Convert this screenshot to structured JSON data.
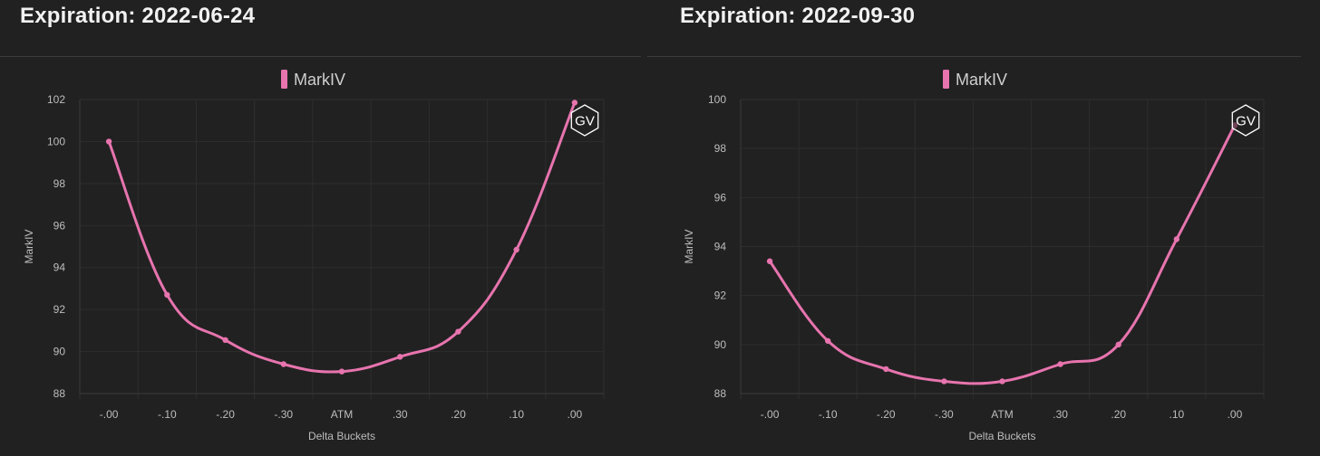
{
  "panels": [
    {
      "title": "Expiration: 2022-06-24",
      "legend": "MarkIV",
      "watermark": "GV",
      "color": "#e774ae"
    },
    {
      "title": "Expiration: 2022-09-30",
      "legend": "MarkIV",
      "watermark": "GV",
      "color": "#e774ae"
    }
  ],
  "chart_data": [
    {
      "type": "line",
      "title": "Expiration: 2022-06-24",
      "xlabel": "Delta Buckets",
      "ylabel": "MarkIV",
      "categories": [
        "-.00",
        "-.10",
        "-.20",
        "-.30",
        "ATM",
        ".30",
        ".20",
        ".10",
        ".00"
      ],
      "series": [
        {
          "name": "MarkIV",
          "values": [
            100.0,
            92.7,
            90.55,
            89.4,
            89.05,
            89.75,
            90.95,
            94.85,
            101.85
          ]
        }
      ],
      "ylim": [
        88,
        102
      ],
      "yticks": [
        88,
        90,
        92,
        94,
        96,
        98,
        100,
        102
      ],
      "grid": true,
      "legend_position": "top-center"
    },
    {
      "type": "line",
      "title": "Expiration: 2022-09-30",
      "xlabel": "Delta Buckets",
      "ylabel": "MarkIV",
      "categories": [
        "-.00",
        "-.10",
        "-.20",
        "-.30",
        "ATM",
        ".30",
        ".20",
        ".10",
        ".00"
      ],
      "series": [
        {
          "name": "MarkIV",
          "values": [
            93.4,
            90.15,
            89.0,
            88.5,
            88.5,
            89.2,
            90.0,
            94.3,
            98.95
          ]
        }
      ],
      "ylim": [
        88,
        100
      ],
      "yticks": [
        88,
        90,
        92,
        94,
        96,
        98,
        100
      ],
      "grid": true,
      "legend_position": "top-center"
    }
  ]
}
